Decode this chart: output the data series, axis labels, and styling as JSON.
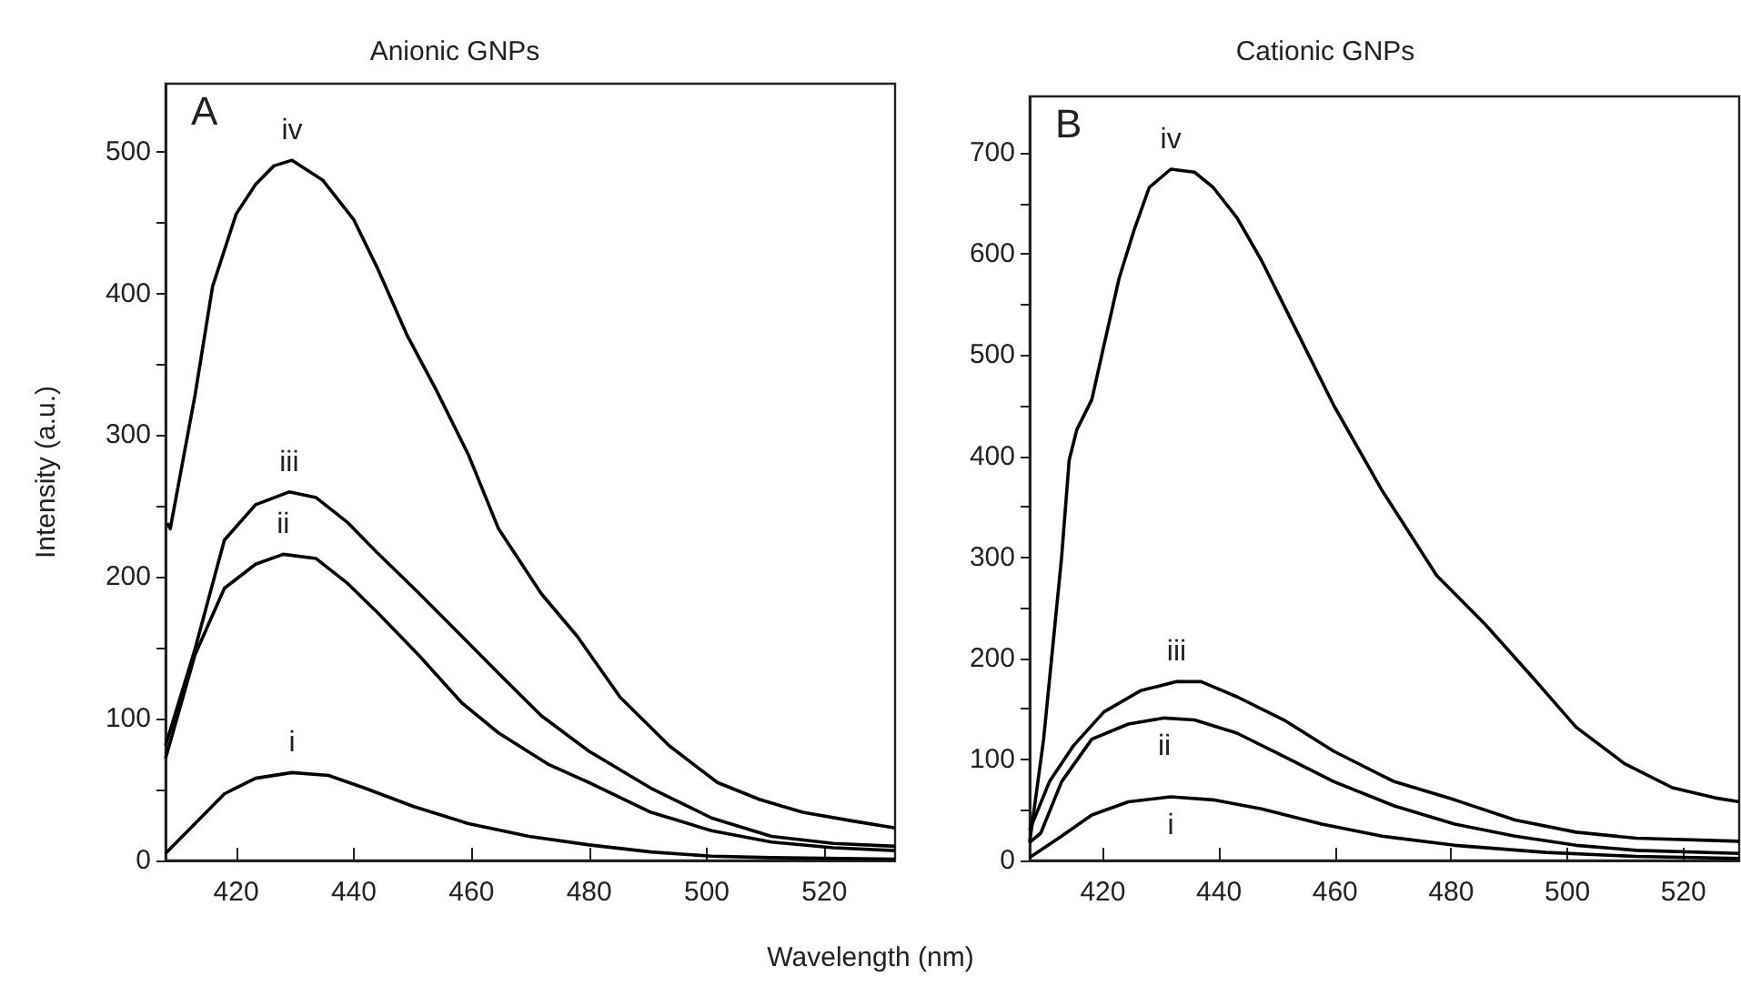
{
  "chart_data": [
    {
      "type": "line",
      "title": "Anionic GNPs",
      "ylabel": "Intensity (a.u.)",
      "xlabel": "Wavelength (nm)",
      "annotations": [
        "A"
      ],
      "xlim": [
        408,
        532
      ],
      "xticks": [
        420,
        440,
        460,
        480,
        500,
        520
      ],
      "ylim": [
        0,
        548
      ],
      "yticks": [
        0,
        {
          "value": 50,
          "label": null
        },
        100,
        {
          "value": 150,
          "label": null
        },
        200,
        {
          "value": 250,
          "label": null
        },
        300,
        {
          "value": 350,
          "label": null
        },
        400,
        {
          "value": 450,
          "label": null
        },
        500
      ],
      "grid": false,
      "legend": false,
      "marker": "none",
      "line_style": "solid",
      "series": [
        {
          "name": "i",
          "color": "#000000",
          "x": [
            408,
            413,
            418,
            423.3,
            429.5,
            435.7,
            441.9,
            450.2,
            459.5,
            469.8,
            480,
            490.5,
            500.8,
            511,
            532
          ],
          "values": [
            5,
            26,
            47,
            58,
            62,
            60,
            51,
            38,
            26,
            17,
            11,
            6,
            3,
            2,
            1
          ]
        },
        {
          "name": "ii",
          "color": "#000000",
          "x": [
            408,
            413,
            418,
            423.3,
            428,
            433.6,
            438.8,
            444,
            451,
            458.4,
            464.6,
            473,
            480,
            490.5,
            500.8,
            511,
            521.5,
            532
          ],
          "values": [
            72,
            145,
            192,
            209,
            216,
            213,
            196,
            175,
            145,
            111,
            90,
            68,
            55,
            34,
            21,
            13,
            9,
            7
          ]
        },
        {
          "name": "iii",
          "color": "#000000",
          "x": [
            408,
            413,
            418,
            423.3,
            429,
            433.6,
            438.8,
            444,
            451.2,
            458.4,
            464.6,
            471.9,
            480,
            490.5,
            500.8,
            511,
            521.5,
            532
          ],
          "values": [
            81,
            149,
            226,
            251,
            260,
            256,
            239,
            217,
            188,
            158,
            132,
            102,
            77,
            51,
            30,
            17,
            12,
            10
          ]
        },
        {
          "name": "iv",
          "color": "#000000",
          "x": [
            408.3,
            408.8,
            413,
            416,
            420,
            423.3,
            426.4,
            429.5,
            434.7,
            440,
            444,
            449,
            454,
            459.5,
            464.6,
            471.9,
            478,
            485.3,
            493.6,
            501.8,
            509,
            516.3,
            524.6,
            532
          ],
          "values": [
            238,
            234,
            328,
            405,
            456,
            477,
            490,
            494,
            480,
            452,
            418,
            371,
            332,
            286,
            234,
            188,
            158,
            115,
            81,
            55,
            43,
            34,
            28,
            23
          ]
        }
      ]
    },
    {
      "type": "line",
      "title": "Cationic GNPs",
      "annotations": [
        "B"
      ],
      "xlim": [
        407.4,
        529.6
      ],
      "xticks": [
        420,
        440,
        460,
        480,
        500,
        520
      ],
      "ylim": [
        0,
        756
      ],
      "yticks": [
        0,
        {
          "value": 50,
          "label": null
        },
        100,
        {
          "value": 150,
          "label": null
        },
        200,
        {
          "value": 250,
          "label": null
        },
        300,
        {
          "value": 350,
          "label": null
        },
        400,
        {
          "value": 450,
          "label": null
        },
        500,
        {
          "value": 550,
          "label": null
        },
        600,
        {
          "value": 650,
          "label": null
        },
        700
      ],
      "grid": false,
      "legend": false,
      "marker": "none",
      "line_style": "solid",
      "series": [
        {
          "name": "i",
          "color": "#000000",
          "x": [
            407.4,
            412.9,
            418.1,
            424.4,
            431.7,
            439,
            447.3,
            457.7,
            468.1,
            480.6,
            496.3,
            511.9,
            529.6
          ],
          "values": [
            3,
            24,
            45,
            58,
            63,
            60,
            51,
            36,
            24,
            15,
            8,
            4,
            2
          ]
        },
        {
          "name": "ii",
          "color": "#000000",
          "x": [
            407.4,
            409.3,
            412.9,
            418.1,
            424.4,
            430.6,
            435.8,
            443.1,
            451.5,
            459.8,
            470.2,
            480.6,
            491,
            501.5,
            511.9,
            529.6
          ],
          "values": [
            18,
            27,
            78,
            120,
            135,
            141,
            139,
            126,
            102,
            78,
            54,
            36,
            24,
            15,
            10,
            7
          ]
        },
        {
          "name": "iii",
          "color": "#000000",
          "x": [
            407.4,
            410.8,
            415,
            420.2,
            426.5,
            432.7,
            436.9,
            443.1,
            451.5,
            459.8,
            470.2,
            480.6,
            491,
            501.5,
            511.9,
            529.6
          ],
          "values": [
            30,
            78,
            114,
            147,
            168,
            177,
            177,
            162,
            138,
            108,
            78,
            60,
            40,
            28,
            22,
            19
          ]
        },
        {
          "name": "iv",
          "color": "#000000",
          "x": [
            407.4,
            409.8,
            412.9,
            414.2,
            415.5,
            418.1,
            420.2,
            422.8,
            425.4,
            428,
            431.7,
            435.8,
            439,
            443.1,
            447.3,
            452.5,
            459.8,
            468.1,
            477.5,
            485.8,
            494.2,
            501.5,
            509.8,
            518.1,
            525.4,
            529.6
          ],
          "values": [
            18,
            120,
            300,
            396,
            426,
            456,
            510,
            576,
            624,
            666,
            684,
            681,
            666,
            636,
            594,
            534,
            450,
            366,
            282,
            234,
            180,
            132,
            96,
            72,
            62,
            58
          ]
        }
      ]
    }
  ]
}
